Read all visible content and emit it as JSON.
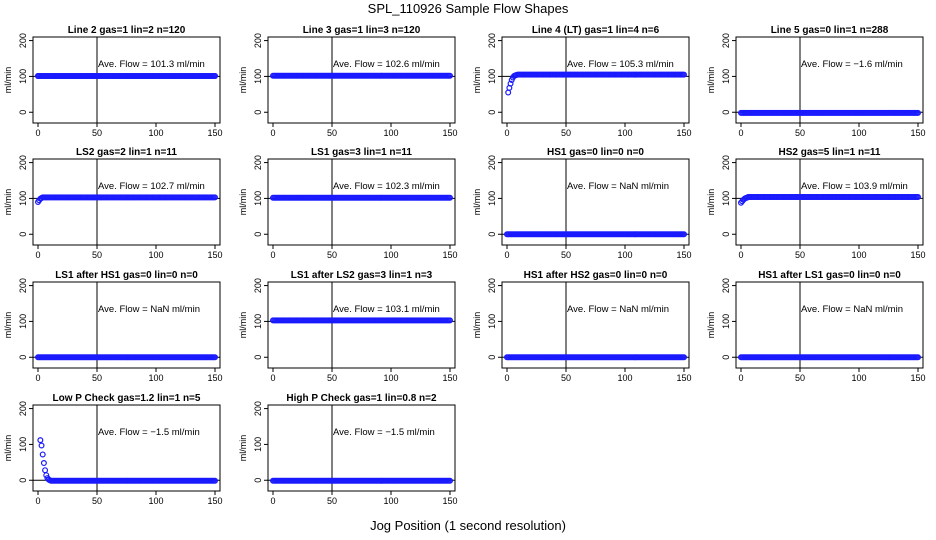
{
  "title": "SPL_110926  Sample Flow Shapes",
  "xlabel": "Jog Position (1 second resolution)",
  "colors": {
    "points": "#1a1aff",
    "axes": "#000000"
  },
  "chart_data": [
    {
      "type": "scatter",
      "title": "Line 2 gas=1 lin=2 n=120",
      "annotation": "Ave. Flow =  101.3  ml/min",
      "ylabel": "ml/min",
      "xticks": [
        "0",
        "50",
        "100",
        "150"
      ],
      "yticks": [
        "0",
        "100",
        "200"
      ],
      "xlim": [
        0,
        150
      ],
      "ylim": [
        -30,
        210
      ],
      "hline": 100,
      "vline": 50,
      "series": [
        {
          "points": [
            [
              0,
              101
            ],
            [
              150,
              101
            ]
          ],
          "flat_from": 0,
          "flat_value": 101
        }
      ]
    },
    {
      "type": "scatter",
      "title": "Line 3 gas=1 lin=3 n=120",
      "annotation": "Ave. Flow =  102.6  ml/min",
      "ylabel": "ml/min",
      "xticks": [
        "0",
        "50",
        "100",
        "150"
      ],
      "yticks": [
        "0",
        "100",
        "200"
      ],
      "xlim": [
        0,
        150
      ],
      "ylim": [
        -30,
        210
      ],
      "hline": 100,
      "vline": 50,
      "series": [
        {
          "points": [],
          "flat_from": 0,
          "flat_value": 102
        }
      ]
    },
    {
      "type": "scatter",
      "title": "Line 4 (LT) gas=1 lin=4 n=6",
      "annotation": "Ave. Flow =  105.3  ml/min",
      "ylabel": "ml/min",
      "xticks": [
        "0",
        "50",
        "100",
        "150"
      ],
      "yticks": [
        "0",
        "100",
        "200"
      ],
      "xlim": [
        0,
        150
      ],
      "ylim": [
        -30,
        210
      ],
      "hline": 100,
      "vline": 50,
      "series": [
        {
          "points": [
            [
              1,
              55
            ],
            [
              2,
              68
            ],
            [
              3,
              80
            ],
            [
              4,
              90
            ],
            [
              5,
              97
            ],
            [
              6,
              101
            ],
            [
              7,
              103
            ],
            [
              8,
              104
            ]
          ],
          "flat_from": 9,
          "flat_value": 105
        }
      ]
    },
    {
      "type": "scatter",
      "title": "Line 5 gas=0 lin=1 n=288",
      "annotation": "Ave. Flow =  −1.6  ml/min",
      "ylabel": "ml/min",
      "xticks": [
        "0",
        "50",
        "100",
        "150"
      ],
      "yticks": [
        "0",
        "100",
        "200"
      ],
      "xlim": [
        0,
        150
      ],
      "ylim": [
        -30,
        210
      ],
      "hline": 0,
      "vline": 50,
      "series": [
        {
          "points": [],
          "flat_from": 0,
          "flat_value": -1.6
        }
      ]
    },
    {
      "type": "scatter",
      "title": "LS2 gas=2 lin=1 n=11",
      "annotation": "Ave. Flow =  102.7  ml/min",
      "ylabel": "ml/min",
      "xticks": [
        "0",
        "50",
        "100",
        "150"
      ],
      "yticks": [
        "0",
        "100",
        "200"
      ],
      "xlim": [
        0,
        150
      ],
      "ylim": [
        -30,
        210
      ],
      "hline": 100,
      "vline": 50,
      "series": [
        {
          "points": [
            [
              0,
              90
            ],
            [
              1,
              95
            ],
            [
              2,
              99
            ],
            [
              3,
              101
            ]
          ],
          "flat_from": 4,
          "flat_value": 103
        }
      ]
    },
    {
      "type": "scatter",
      "title": "LS1 gas=3 lin=1 n=11",
      "annotation": "Ave. Flow =  102.3  ml/min",
      "ylabel": "ml/min",
      "xticks": [
        "0",
        "50",
        "100",
        "150"
      ],
      "yticks": [
        "0",
        "100",
        "200"
      ],
      "xlim": [
        0,
        150
      ],
      "ylim": [
        -30,
        210
      ],
      "hline": 100,
      "vline": 50,
      "series": [
        {
          "points": [],
          "flat_from": 0,
          "flat_value": 102
        }
      ]
    },
    {
      "type": "scatter",
      "title": "HS1 gas=0 lin=0 n=0",
      "annotation": "Ave. Flow =  NaN  ml/min",
      "ylabel": "ml/min",
      "xticks": [
        "0",
        "50",
        "100",
        "150"
      ],
      "yticks": [
        "0",
        "100",
        "200"
      ],
      "xlim": [
        0,
        150
      ],
      "ylim": [
        -30,
        210
      ],
      "hline": 0,
      "vline": 50,
      "series": [
        {
          "points": [],
          "flat_from": 0,
          "flat_value": 0
        }
      ]
    },
    {
      "type": "scatter",
      "title": "HS2 gas=5 lin=1 n=11",
      "annotation": "Ave. Flow =  103.9  ml/min",
      "ylabel": "ml/min",
      "xticks": [
        "0",
        "50",
        "100",
        "150"
      ],
      "yticks": [
        "0",
        "100",
        "200"
      ],
      "xlim": [
        0,
        150
      ],
      "ylim": [
        -30,
        210
      ],
      "hline": 100,
      "vline": 50,
      "series": [
        {
          "points": [
            [
              0,
              88
            ],
            [
              1,
              92
            ],
            [
              2,
              96
            ],
            [
              3,
              99
            ],
            [
              4,
              101
            ],
            [
              5,
              102
            ]
          ],
          "flat_from": 6,
          "flat_value": 104
        }
      ]
    },
    {
      "type": "scatter",
      "title": "LS1 after HS1 gas=0 lin=0 n=0",
      "annotation": "Ave. Flow =  NaN  ml/min",
      "ylabel": "ml/min",
      "xticks": [
        "0",
        "50",
        "100",
        "150"
      ],
      "yticks": [
        "0",
        "100",
        "200"
      ],
      "xlim": [
        0,
        150
      ],
      "ylim": [
        -30,
        210
      ],
      "hline": 0,
      "vline": 50,
      "series": [
        {
          "points": [],
          "flat_from": 0,
          "flat_value": 0
        }
      ]
    },
    {
      "type": "scatter",
      "title": "LS1 after LS2 gas=3 lin=1 n=3",
      "annotation": "Ave. Flow =  103.1  ml/min",
      "ylabel": "ml/min",
      "xticks": [
        "0",
        "50",
        "100",
        "150"
      ],
      "yticks": [
        "0",
        "100",
        "200"
      ],
      "xlim": [
        0,
        150
      ],
      "ylim": [
        -30,
        210
      ],
      "hline": 100,
      "vline": 50,
      "series": [
        {
          "points": [],
          "flat_from": 0,
          "flat_value": 103
        }
      ]
    },
    {
      "type": "scatter",
      "title": "HS1 after HS2 gas=0 lin=0 n=0",
      "annotation": "Ave. Flow =  NaN  ml/min",
      "ylabel": "ml/min",
      "xticks": [
        "0",
        "50",
        "100",
        "150"
      ],
      "yticks": [
        "0",
        "100",
        "200"
      ],
      "xlim": [
        0,
        150
      ],
      "ylim": [
        -30,
        210
      ],
      "hline": 0,
      "vline": 50,
      "series": [
        {
          "points": [],
          "flat_from": 0,
          "flat_value": 0
        }
      ]
    },
    {
      "type": "scatter",
      "title": "HS1 after LS1 gas=0 lin=0 n=0",
      "annotation": "Ave. Flow =  NaN  ml/min",
      "ylabel": "ml/min",
      "xticks": [
        "0",
        "50",
        "100",
        "150"
      ],
      "yticks": [
        "0",
        "100",
        "200"
      ],
      "xlim": [
        0,
        150
      ],
      "ylim": [
        -30,
        210
      ],
      "hline": 0,
      "vline": 50,
      "series": [
        {
          "points": [],
          "flat_from": 0,
          "flat_value": 0
        }
      ]
    },
    {
      "type": "scatter",
      "title": "Low P Check gas=1.2 lin=1 n=5",
      "annotation": "Ave. Flow =  −1.5  ml/min",
      "ylabel": "ml/min",
      "xticks": [
        "0",
        "50",
        "100",
        "150"
      ],
      "yticks": [
        "0",
        "100",
        "200"
      ],
      "xlim": [
        0,
        150
      ],
      "ylim": [
        -30,
        210
      ],
      "hline": 0,
      "vline": 50,
      "series": [
        {
          "points": [
            [
              2,
              112
            ],
            [
              3,
              97
            ],
            [
              4,
              72
            ],
            [
              5,
              48
            ],
            [
              6,
              28
            ],
            [
              7,
              14
            ],
            [
              8,
              6
            ],
            [
              9,
              2
            ],
            [
              10,
              0
            ]
          ],
          "flat_from": 11,
          "flat_value": -1.5
        }
      ]
    },
    {
      "type": "scatter",
      "title": "High P Check gas=1 lin=0.8 n=2",
      "annotation": "Ave. Flow =  −1.5  ml/min",
      "ylabel": "ml/min",
      "xticks": [
        "0",
        "50",
        "100",
        "150"
      ],
      "yticks": [
        "0",
        "100",
        "200"
      ],
      "xlim": [
        0,
        150
      ],
      "ylim": [
        -30,
        210
      ],
      "hline": 0,
      "vline": 50,
      "series": [
        {
          "points": [],
          "flat_from": 0,
          "flat_value": -1.5
        }
      ]
    }
  ]
}
